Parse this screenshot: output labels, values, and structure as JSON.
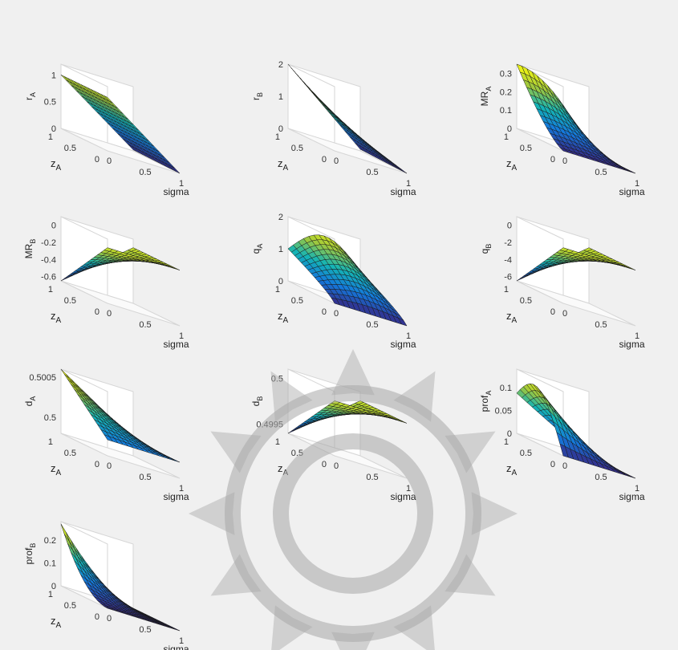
{
  "figure": {
    "background": "#f0f0f0",
    "colormap": "parula",
    "rows": 4,
    "cols": 3
  },
  "chart_data": [
    {
      "id": "rA",
      "type": "surface",
      "zlabel": "r",
      "zlabel_sub": "A",
      "xlabel": "sigma",
      "ylabel": "z",
      "ylabel_sub": "A",
      "xlim": [
        0,
        1
      ],
      "ylim": [
        0,
        1
      ],
      "zlim": [
        0,
        1.2
      ],
      "ticks": {
        "z": [
          "0",
          "0.5",
          "1"
        ],
        "x": [
          "0",
          "0.5",
          "1"
        ],
        "y": [
          "0",
          "0.5",
          "1"
        ]
      },
      "surface": {
        "corners": {
          "s0z1": 1.0,
          "s1z1": 0.02,
          "s0z0": 1.0,
          "s1z0": 0.0
        },
        "shape": "plane"
      }
    },
    {
      "id": "rB",
      "type": "surface",
      "zlabel": "r",
      "zlabel_sub": "B",
      "xlabel": "sigma",
      "ylabel": "z",
      "ylabel_sub": "A",
      "xlim": [
        0,
        1
      ],
      "ylim": [
        0,
        1
      ],
      "zlim": [
        0,
        2
      ],
      "ticks": {
        "z": [
          "0",
          "1",
          "2"
        ],
        "x": [
          "0",
          "0.5",
          "1"
        ],
        "y": [
          "0",
          "0.5",
          "1"
        ]
      },
      "surface": {
        "corners": {
          "s0z1": 2.0,
          "s1z1": 0.05,
          "s0z0": 1.0,
          "s1z0": 0.0
        },
        "shape": "plane"
      }
    },
    {
      "id": "MRA",
      "type": "surface",
      "zlabel": "MR",
      "zlabel_sub": "A",
      "xlabel": "sigma",
      "ylabel": "z",
      "ylabel_sub": "A",
      "xlim": [
        0,
        1
      ],
      "ylim": [
        0,
        1
      ],
      "zlim": [
        0,
        0.35
      ],
      "ticks": {
        "z": [
          "0",
          "0.1",
          "0.2",
          "0.3"
        ],
        "x": [
          "0",
          "0.5",
          "1"
        ],
        "y": [
          "0",
          "0.5",
          "1"
        ]
      },
      "surface": {
        "corners": {
          "s0z1": 0.35,
          "s1z1": 0.02,
          "s0z0": 0.0,
          "s1z0": 0.0
        },
        "shape": "concave"
      }
    },
    {
      "id": "MRB",
      "type": "surface",
      "zlabel": "MR",
      "zlabel_sub": "B",
      "xlabel": "sigma",
      "ylabel": "z",
      "ylabel_sub": "A",
      "xlim": [
        0,
        1
      ],
      "ylim": [
        0,
        1
      ],
      "zlim": [
        -0.65,
        0.1
      ],
      "ticks": {
        "z": [
          "-0.6",
          "-0.4",
          "-0.2",
          "0"
        ],
        "x": [
          "0",
          "0.5",
          "1"
        ],
        "y": [
          "0",
          "0.5",
          "1"
        ]
      },
      "surface": {
        "corners": {
          "s0z1": -0.65,
          "s1z1": 0.0,
          "s0z0": 0.0,
          "s1z0": 0.0
        },
        "shape": "plane"
      }
    },
    {
      "id": "qA",
      "type": "surface",
      "zlabel": "q",
      "zlabel_sub": "A",
      "xlabel": "sigma",
      "ylabel": "z",
      "ylabel_sub": "A",
      "xlim": [
        0,
        1
      ],
      "ylim": [
        0,
        1
      ],
      "zlim": [
        0,
        2
      ],
      "ticks": {
        "z": [
          "0",
          "1",
          "2"
        ],
        "x": [
          "0",
          "0.5",
          "1"
        ],
        "y": [
          "0",
          "0.5",
          "1"
        ]
      },
      "surface": {
        "corners": {
          "s0z1": 1.0,
          "s1z1": 1.0,
          "s0z0": 0.0,
          "s1z0": 0.0
        },
        "shape": "dome",
        "peak": 1.75
      }
    },
    {
      "id": "qB",
      "type": "surface",
      "zlabel": "q",
      "zlabel_sub": "B",
      "xlabel": "sigma",
      "ylabel": "z",
      "ylabel_sub": "A",
      "xlim": [
        0,
        1
      ],
      "ylim": [
        0,
        1
      ],
      "zlim": [
        -6.5,
        1
      ],
      "ticks": {
        "z": [
          "-6",
          "-4",
          "-2",
          "0"
        ],
        "x": [
          "0",
          "0.5",
          "1"
        ],
        "y": [
          "0",
          "0.5",
          "1"
        ]
      },
      "surface": {
        "corners": {
          "s0z1": -6.5,
          "s1z1": 0.0,
          "s0z0": 0.0,
          "s1z0": 0.0
        },
        "shape": "plane"
      }
    },
    {
      "id": "dA",
      "type": "surface",
      "zlabel": "d",
      "zlabel_sub": "A",
      "xlabel": "sigma",
      "ylabel": "z",
      "ylabel_sub": "A",
      "xlim": [
        0,
        1
      ],
      "ylim": [
        0,
        1
      ],
      "zlim": [
        0.4998,
        0.5006
      ],
      "ticks": {
        "z": [
          "0.5",
          "0.5005"
        ],
        "x": [
          "0",
          "0.5",
          "1"
        ],
        "y": [
          "0",
          "0.5",
          "1"
        ]
      },
      "surface": {
        "corners": {
          "s0z1": 0.5006,
          "s1z1": 0.5,
          "s0z0": 0.5,
          "s1z0": 0.5
        },
        "shape": "plane"
      }
    },
    {
      "id": "dB",
      "type": "surface",
      "zlabel": "d",
      "zlabel_sub": "B",
      "xlabel": "sigma",
      "ylabel": "z",
      "ylabel_sub": "A",
      "xlim": [
        0,
        1
      ],
      "ylim": [
        0,
        1
      ],
      "zlim": [
        0.4994,
        0.5001
      ],
      "ticks": {
        "z": [
          "0.4995",
          "0.5"
        ],
        "x": [
          "0",
          "0.5",
          "1"
        ],
        "y": [
          "0",
          "0.5",
          "1"
        ]
      },
      "surface": {
        "corners": {
          "s0z1": 0.4994,
          "s1z1": 0.5,
          "s0z0": 0.5,
          "s1z0": 0.5
        },
        "shape": "plane"
      }
    },
    {
      "id": "profA",
      "type": "surface",
      "zlabel": "prof",
      "zlabel_sub": "A",
      "xlabel": "sigma",
      "ylabel": "z",
      "ylabel_sub": "A",
      "xlim": [
        0,
        1
      ],
      "ylim": [
        0,
        1
      ],
      "zlim": [
        0,
        0.14
      ],
      "ticks": {
        "z": [
          "0",
          "0.05",
          "0.1"
        ],
        "x": [
          "0",
          "0.5",
          "1"
        ],
        "y": [
          "0",
          "0.5",
          "1"
        ]
      },
      "surface": {
        "corners": {
          "s0z1": 0.075,
          "s1z1": 0.0,
          "s0z0": 0.0,
          "s1z0": 0.0
        },
        "shape": "hill",
        "peak": 0.135
      }
    },
    {
      "id": "profB",
      "type": "surface",
      "zlabel": "prof",
      "zlabel_sub": "B",
      "xlabel": "sigma",
      "ylabel": "z",
      "ylabel_sub": "A",
      "xlim": [
        0,
        1
      ],
      "ylim": [
        0,
        1
      ],
      "zlim": [
        0,
        0.28
      ],
      "ticks": {
        "z": [
          "0",
          "0.1",
          "0.2"
        ],
        "x": [
          "0",
          "0.5",
          "1"
        ],
        "y": [
          "0",
          "0.5",
          "1"
        ]
      },
      "surface": {
        "corners": {
          "s0z1": 0.27,
          "s1z1": 0.0,
          "s0z0": 0.0,
          "s1z0": 0.0
        },
        "shape": "convex"
      }
    }
  ]
}
